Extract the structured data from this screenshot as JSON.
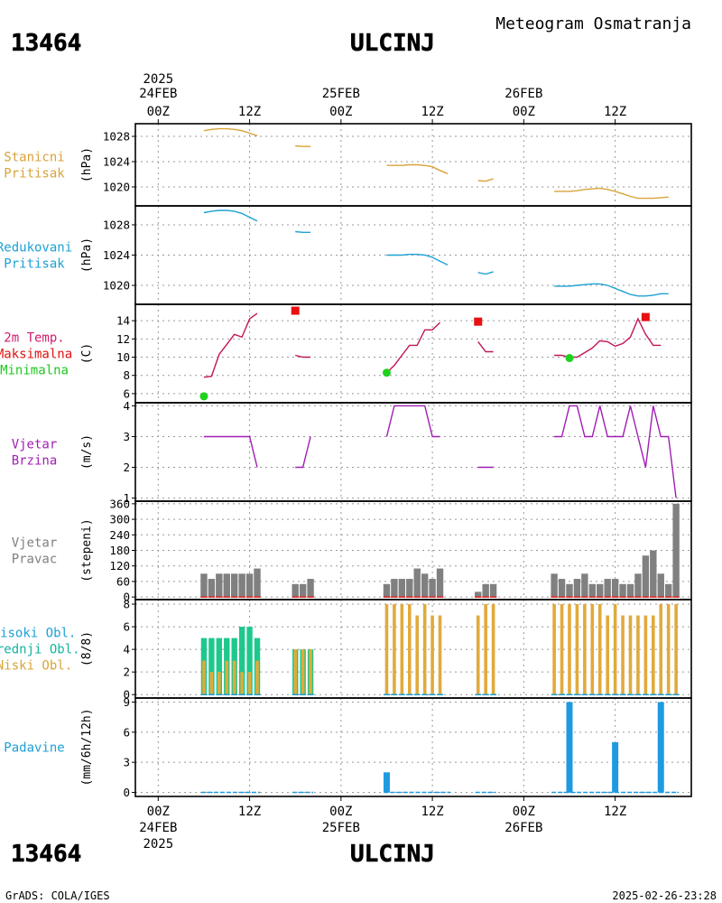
{
  "header": {
    "station_id": "13464",
    "station_name": "ULCINJ",
    "product": "Meteogram Osmatranja"
  },
  "footer": {
    "credit": "GrADS: COLA/IGES",
    "timestamp": "2025-02-26-23:28"
  },
  "time_axis": {
    "year": "2025",
    "tick_labels": [
      "00Z",
      "12Z",
      "00Z",
      "12Z",
      "00Z",
      "12Z"
    ],
    "tick_hours": [
      0,
      12,
      24,
      36,
      48,
      60
    ],
    "day_labels": [
      "24FEB",
      "25FEB",
      "26FEB"
    ],
    "day_hours": [
      0,
      24,
      48
    ],
    "hour_range": [
      -3,
      70
    ]
  },
  "chart_data": [
    {
      "id": "stanicni",
      "type": "line",
      "label_lines": [
        "Stanicni",
        "Pritisak"
      ],
      "ylabel": "(hPa)",
      "color": "#d9a33a",
      "ylim": [
        1017,
        1030
      ],
      "yticks": [
        1020,
        1024,
        1028
      ],
      "series": [
        {
          "values": [
            [
              6,
              1028.9
            ],
            [
              7,
              1029.1
            ],
            [
              8,
              1029.2
            ],
            [
              9,
              1029.2
            ],
            [
              10,
              1029.1
            ],
            [
              11,
              1028.9
            ],
            [
              12,
              1028.5
            ],
            [
              13,
              1028.1
            ]
          ]
        },
        {
          "values": [
            [
              18,
              1026.5
            ],
            [
              19,
              1026.4
            ],
            [
              20,
              1026.4
            ]
          ]
        },
        {
          "values": [
            [
              30,
              1023.4
            ],
            [
              31,
              1023.4
            ],
            [
              32,
              1023.4
            ],
            [
              33,
              1023.5
            ],
            [
              34,
              1023.5
            ],
            [
              35,
              1023.4
            ],
            [
              36,
              1023.2
            ],
            [
              37,
              1022.6
            ],
            [
              38,
              1022.1
            ]
          ]
        },
        {
          "values": [
            [
              42,
              1021.0
            ],
            [
              43,
              1020.9
            ],
            [
              44,
              1021.3
            ]
          ]
        },
        {
          "values": [
            [
              52,
              1019.3
            ],
            [
              53,
              1019.3
            ],
            [
              54,
              1019.3
            ],
            [
              55,
              1019.4
            ],
            [
              56,
              1019.6
            ],
            [
              57,
              1019.7
            ],
            [
              58,
              1019.8
            ],
            [
              59,
              1019.6
            ],
            [
              60,
              1019.3
            ],
            [
              61,
              1018.9
            ],
            [
              62,
              1018.5
            ],
            [
              63,
              1018.2
            ],
            [
              64,
              1018.2
            ],
            [
              65,
              1018.2
            ],
            [
              66,
              1018.3
            ],
            [
              67,
              1018.4
            ]
          ]
        }
      ]
    },
    {
      "id": "redukovani",
      "type": "line",
      "label_lines": [
        "Redukovani",
        "Pritisak"
      ],
      "ylabel": "(hPa)",
      "color": "#1ea1d4",
      "ylim": [
        1017.5,
        1030.5
      ],
      "yticks": [
        1020,
        1024,
        1028
      ],
      "series": [
        {
          "values": [
            [
              6,
              1029.6
            ],
            [
              7,
              1029.8
            ],
            [
              8,
              1029.9
            ],
            [
              9,
              1029.9
            ],
            [
              10,
              1029.8
            ],
            [
              11,
              1029.5
            ],
            [
              12,
              1029.0
            ],
            [
              13,
              1028.5
            ]
          ]
        },
        {
          "values": [
            [
              18,
              1027.1
            ],
            [
              19,
              1027.0
            ],
            [
              20,
              1027.0
            ]
          ]
        },
        {
          "values": [
            [
              30,
              1024.0
            ],
            [
              31,
              1024.0
            ],
            [
              32,
              1024.0
            ],
            [
              33,
              1024.1
            ],
            [
              34,
              1024.1
            ],
            [
              35,
              1024.0
            ],
            [
              36,
              1023.7
            ],
            [
              37,
              1023.2
            ],
            [
              38,
              1022.7
            ]
          ]
        },
        {
          "values": [
            [
              42,
              1021.7
            ],
            [
              43,
              1021.5
            ],
            [
              44,
              1021.8
            ]
          ]
        },
        {
          "values": [
            [
              52,
              1019.9
            ],
            [
              53,
              1019.9
            ],
            [
              54,
              1019.9
            ],
            [
              55,
              1020.0
            ],
            [
              56,
              1020.1
            ],
            [
              57,
              1020.2
            ],
            [
              58,
              1020.2
            ],
            [
              59,
              1020.0
            ],
            [
              60,
              1019.6
            ],
            [
              61,
              1019.2
            ],
            [
              62,
              1018.8
            ],
            [
              63,
              1018.6
            ],
            [
              64,
              1018.6
            ],
            [
              65,
              1018.7
            ],
            [
              66,
              1018.9
            ],
            [
              67,
              1018.9
            ]
          ]
        }
      ]
    },
    {
      "id": "temperatura",
      "type": "line",
      "label_lines": [
        "2m Temp.",
        "Maksimalna",
        "Minimalna"
      ],
      "label_colors": [
        "#d01e6e",
        "#e01010",
        "#1ec81e"
      ],
      "ylabel": "(C)",
      "color": "#c0145a",
      "ylim": [
        5,
        15.8
      ],
      "yticks": [
        6,
        8,
        10,
        12,
        14
      ],
      "series": [
        {
          "values": [
            [
              6,
              7.8
            ],
            [
              7,
              7.9
            ],
            [
              8,
              10.3
            ],
            [
              9,
              11.4
            ],
            [
              10,
              12.5
            ],
            [
              11,
              12.2
            ],
            [
              12,
              14.2
            ],
            [
              13,
              14.8
            ]
          ]
        },
        {
          "values": [
            [
              18,
              10.2
            ],
            [
              19,
              10.0
            ],
            [
              20,
              10.0
            ]
          ]
        },
        {
          "values": [
            [
              30,
              8.3
            ],
            [
              31,
              9.1
            ],
            [
              32,
              10.2
            ],
            [
              33,
              11.3
            ],
            [
              34,
              11.3
            ],
            [
              35,
              13.0
            ],
            [
              36,
              13.0
            ],
            [
              37,
              13.8
            ]
          ]
        },
        {
          "values": [
            [
              42,
              11.7
            ],
            [
              43,
              10.6
            ],
            [
              44,
              10.6
            ]
          ]
        },
        {
          "values": [
            [
              52,
              10.2
            ],
            [
              53,
              10.2
            ],
            [
              54,
              10.0
            ],
            [
              55,
              10.0
            ],
            [
              56,
              10.5
            ],
            [
              57,
              11.0
            ],
            [
              58,
              11.8
            ],
            [
              59,
              11.7
            ],
            [
              60,
              11.2
            ],
            [
              61,
              11.5
            ],
            [
              62,
              12.2
            ],
            [
              63,
              14.2
            ],
            [
              64,
              12.5
            ],
            [
              65,
              11.3
            ],
            [
              66,
              11.3
            ]
          ]
        }
      ],
      "max_points": [
        [
          18,
          15.1
        ],
        [
          42,
          13.9
        ],
        [
          64,
          14.4
        ]
      ],
      "min_points": [
        [
          6,
          5.7
        ],
        [
          30,
          8.3
        ],
        [
          54,
          9.9
        ]
      ]
    },
    {
      "id": "brzina",
      "type": "line",
      "label_lines": [
        "Vjetar",
        "Brzina"
      ],
      "ylabel": "(m/s)",
      "color": "#a01eb4",
      "ylim": [
        0.9,
        4.1
      ],
      "yticks": [
        1,
        2,
        3,
        4
      ],
      "series": [
        {
          "values": [
            [
              6,
              3
            ],
            [
              7,
              3
            ],
            [
              8,
              3
            ],
            [
              9,
              3
            ],
            [
              10,
              3
            ],
            [
              11,
              3
            ],
            [
              12,
              3
            ],
            [
              13,
              2
            ]
          ]
        },
        {
          "values": [
            [
              18,
              2
            ],
            [
              19,
              2
            ],
            [
              20,
              3
            ]
          ]
        },
        {
          "values": [
            [
              30,
              3
            ],
            [
              31,
              4
            ],
            [
              32,
              4
            ],
            [
              33,
              4
            ],
            [
              34,
              4
            ],
            [
              35,
              4
            ],
            [
              36,
              3
            ],
            [
              37,
              3
            ]
          ]
        },
        {
          "values": [
            [
              42,
              2
            ],
            [
              43,
              2
            ],
            [
              44,
              2
            ]
          ]
        },
        {
          "values": [
            [
              52,
              3
            ],
            [
              53,
              3
            ],
            [
              54,
              4
            ],
            [
              55,
              4
            ],
            [
              56,
              3
            ],
            [
              57,
              3
            ],
            [
              58,
              4
            ],
            [
              59,
              3
            ],
            [
              60,
              3
            ],
            [
              61,
              3
            ],
            [
              62,
              4
            ],
            [
              63,
              3
            ],
            [
              64,
              2
            ],
            [
              65,
              4
            ],
            [
              66,
              3
            ],
            [
              67,
              3
            ],
            [
              68,
              1
            ]
          ]
        }
      ]
    },
    {
      "id": "pravac",
      "type": "bar",
      "label_lines": [
        "Vjetar",
        "Pravac"
      ],
      "ylabel": "(stepeni)",
      "color": "#808080",
      "ylim": [
        -10,
        370
      ],
      "yticks": [
        0,
        60,
        120,
        180,
        240,
        300,
        360
      ],
      "values": [
        [
          6,
          90
        ],
        [
          7,
          70
        ],
        [
          8,
          90
        ],
        [
          9,
          90
        ],
        [
          10,
          90
        ],
        [
          11,
          90
        ],
        [
          12,
          90
        ],
        [
          13,
          110
        ],
        [
          18,
          50
        ],
        [
          19,
          50
        ],
        [
          20,
          70
        ],
        [
          30,
          50
        ],
        [
          31,
          70
        ],
        [
          32,
          70
        ],
        [
          33,
          70
        ],
        [
          34,
          110
        ],
        [
          35,
          90
        ],
        [
          36,
          70
        ],
        [
          37,
          110
        ],
        [
          42,
          20
        ],
        [
          43,
          50
        ],
        [
          44,
          50
        ],
        [
          52,
          90
        ],
        [
          53,
          70
        ],
        [
          54,
          50
        ],
        [
          55,
          70
        ],
        [
          56,
          90
        ],
        [
          57,
          50
        ],
        [
          58,
          50
        ],
        [
          59,
          70
        ],
        [
          60,
          70
        ],
        [
          61,
          50
        ],
        [
          62,
          50
        ],
        [
          63,
          90
        ],
        [
          64,
          160
        ],
        [
          65,
          180
        ],
        [
          66,
          90
        ],
        [
          67,
          50
        ],
        [
          68,
          360
        ]
      ]
    },
    {
      "id": "oblacnost",
      "type": "bar",
      "label_lines": [
        "Visoki Obl.",
        "Srednji Obl.",
        "Niski Obl."
      ],
      "label_colors": [
        "#1ea1d4",
        "#14b4a0",
        "#d9a33a"
      ],
      "ylabel": "(8/8)",
      "ylim": [
        -0.3,
        8.4
      ],
      "yticks": [
        0,
        2,
        4,
        6,
        8
      ],
      "colors": {
        "high": "#1ea1d4",
        "mid": "#1ec88c",
        "low": "#e0aa3c"
      },
      "mid_values": [
        [
          6,
          5
        ],
        [
          7,
          5
        ],
        [
          8,
          5
        ],
        [
          9,
          5
        ],
        [
          10,
          5
        ],
        [
          11,
          6
        ],
        [
          12,
          6
        ],
        [
          13,
          5
        ],
        [
          18,
          4
        ],
        [
          19,
          4
        ],
        [
          20,
          4
        ]
      ],
      "low_values": [
        [
          6,
          3
        ],
        [
          7,
          2
        ],
        [
          8,
          2
        ],
        [
          9,
          3
        ],
        [
          10,
          3
        ],
        [
          11,
          2
        ],
        [
          12,
          2
        ],
        [
          13,
          3
        ],
        [
          18,
          4
        ],
        [
          19,
          4
        ],
        [
          20,
          4
        ],
        [
          30,
          8
        ],
        [
          31,
          8
        ],
        [
          32,
          8
        ],
        [
          33,
          8
        ],
        [
          34,
          7
        ],
        [
          35,
          8
        ],
        [
          36,
          7
        ],
        [
          37,
          7
        ],
        [
          42,
          7
        ],
        [
          43,
          8
        ],
        [
          44,
          8
        ],
        [
          52,
          8
        ],
        [
          53,
          8
        ],
        [
          54,
          8
        ],
        [
          55,
          8
        ],
        [
          56,
          8
        ],
        [
          57,
          8
        ],
        [
          58,
          8
        ],
        [
          59,
          7
        ],
        [
          60,
          8
        ],
        [
          61,
          7
        ],
        [
          62,
          7
        ],
        [
          63,
          7
        ],
        [
          64,
          7
        ],
        [
          65,
          7
        ],
        [
          66,
          8
        ],
        [
          67,
          8
        ],
        [
          68,
          8
        ]
      ]
    },
    {
      "id": "padavine",
      "type": "bar",
      "label_lines": [
        "Padavine"
      ],
      "label_colors": [
        "#1ea1d4"
      ],
      "ylabel": "(mm/6h/12h)",
      "color": "#1e9be0",
      "ylim": [
        -0.4,
        9.4
      ],
      "yticks": [
        0,
        3,
        6,
        9
      ],
      "values": [
        [
          30,
          2
        ],
        [
          54,
          9
        ],
        [
          60,
          5
        ],
        [
          66,
          9
        ]
      ],
      "trace_segments": [
        [
          6,
          13
        ],
        [
          18,
          20
        ],
        [
          30,
          38
        ],
        [
          42,
          44
        ],
        [
          52,
          68
        ]
      ]
    }
  ]
}
